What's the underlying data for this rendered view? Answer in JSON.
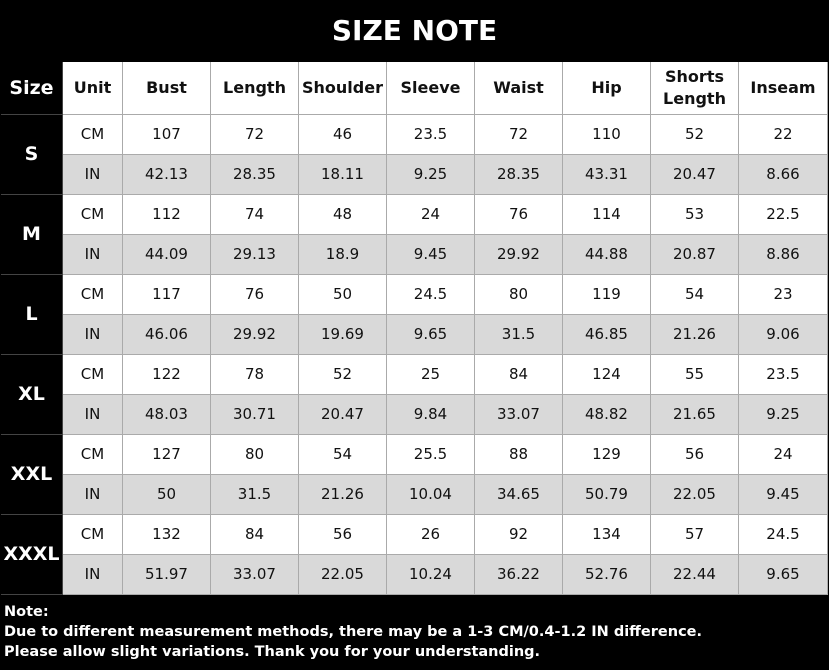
{
  "title": "SIZE NOTE",
  "table": {
    "header": [
      "Size",
      "Unit",
      "Bust",
      "Length",
      "Shoulder",
      "Sleeve",
      "Waist",
      "Hip",
      "Shorts Length",
      "Inseam"
    ],
    "groups": [
      {
        "size": "S",
        "rows": [
          {
            "unit": "CM",
            "values": [
              107,
              72,
              46,
              23.5,
              72,
              110,
              52,
              22
            ]
          },
          {
            "unit": "IN",
            "values": [
              42.13,
              28.35,
              18.11,
              9.25,
              28.35,
              43.31,
              20.47,
              8.66
            ]
          }
        ]
      },
      {
        "size": "M",
        "rows": [
          {
            "unit": "CM",
            "values": [
              112,
              74,
              48,
              24,
              76,
              114,
              53,
              22.5
            ]
          },
          {
            "unit": "IN",
            "values": [
              44.09,
              29.13,
              18.9,
              9.45,
              29.92,
              44.88,
              20.87,
              8.86
            ]
          }
        ]
      },
      {
        "size": "L",
        "rows": [
          {
            "unit": "CM",
            "values": [
              117,
              76,
              50,
              24.5,
              80,
              119,
              54,
              23
            ]
          },
          {
            "unit": "IN",
            "values": [
              46.06,
              29.92,
              19.69,
              9.65,
              31.5,
              46.85,
              21.26,
              9.06
            ]
          }
        ]
      },
      {
        "size": "XL",
        "rows": [
          {
            "unit": "CM",
            "values": [
              122,
              78,
              52,
              25,
              84,
              124,
              55,
              23.5
            ]
          },
          {
            "unit": "IN",
            "values": [
              48.03,
              30.71,
              20.47,
              9.84,
              33.07,
              48.82,
              21.65,
              9.25
            ]
          }
        ]
      },
      {
        "size": "XXL",
        "rows": [
          {
            "unit": "CM",
            "values": [
              127,
              80,
              54,
              25.5,
              88,
              129,
              56,
              24
            ]
          },
          {
            "unit": "IN",
            "values": [
              50,
              31.5,
              21.26,
              10.04,
              34.65,
              50.79,
              22.05,
              9.45
            ]
          }
        ]
      },
      {
        "size": "XXXL",
        "rows": [
          {
            "unit": "CM",
            "values": [
              132,
              84,
              56,
              26,
              92,
              134,
              57,
              24.5
            ]
          },
          {
            "unit": "IN",
            "values": [
              51.97,
              33.07,
              22.05,
              10.24,
              36.22,
              52.76,
              22.44,
              9.65
            ]
          }
        ]
      }
    ]
  },
  "note": [
    "Note:",
    "Due to different measurement methods, there may be a 1-3 CM/0.4-1.2 IN difference.",
    "Please allow slight variations. Thank you for your understanding."
  ]
}
